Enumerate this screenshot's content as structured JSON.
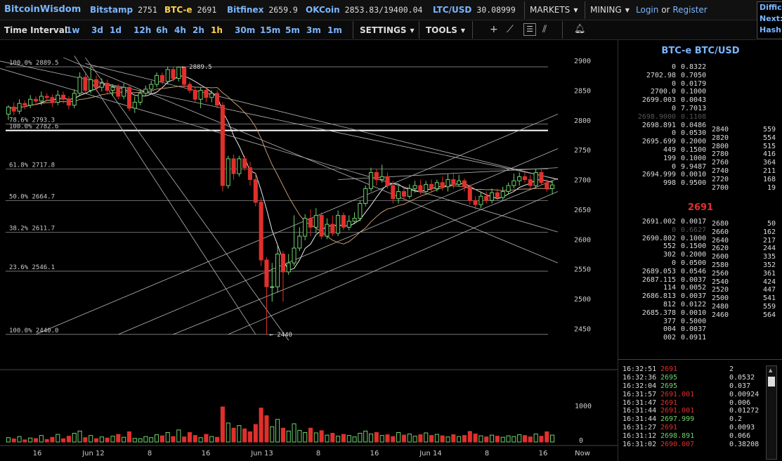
{
  "topbar": {
    "brand": "BitcoinWisdom",
    "exchanges": [
      {
        "name": "Bitstamp",
        "price": "2751"
      },
      {
        "name": "BTC-e",
        "price": "2691"
      },
      {
        "name": "Bitfinex",
        "price": "2659.9"
      },
      {
        "name": "OKCoin",
        "price": "2853.83/19400.04"
      },
      {
        "name": "LTC/USD",
        "price": "30.08999"
      }
    ],
    "markets_label": "MARKETS",
    "mining_label": "MINING",
    "login_label": "Login",
    "or_text": "or",
    "register_label": "Register",
    "side_lines": [
      "Diffic",
      "Next:",
      "Hash"
    ]
  },
  "toolbar": {
    "time_interval_label": "Time Interval:",
    "intervals": [
      "1w",
      "3d",
      "1d",
      "12h",
      "6h",
      "4h",
      "2h",
      "1h",
      "30m",
      "15m",
      "5m",
      "3m",
      "1m"
    ],
    "active_interval": "1h",
    "settings_label": "SETTINGS",
    "tools_label": "TOOLS",
    "tool_icons": [
      "crosshair-icon",
      "line-tool-icon",
      "horizontal-lines-icon",
      "fan-tool-icon",
      "alarm-icon"
    ]
  },
  "colors": {
    "up": "#6ed36e",
    "down": "#e0302c",
    "accent": "#7ab6ff",
    "active": "#ffd24d"
  },
  "chart_data": {
    "type": "candlestick",
    "y_ticks": [
      2450,
      2500,
      2550,
      2600,
      2650,
      2700,
      2750,
      2800,
      2850,
      2900
    ],
    "ylim": [
      2415,
      2925
    ],
    "x_tick_labels": [
      "16",
      "Jun 12",
      "8",
      "16",
      "Jun 13",
      "8",
      "16",
      "Jun 14",
      "8",
      "16",
      "Now"
    ],
    "volume_ticks": [
      "1000",
      "0"
    ],
    "fib_levels": [
      {
        "label": "100.0% 2889.5",
        "value": 2889.5
      },
      {
        "label": "78.6% 2793.3",
        "value": 2793.3
      },
      {
        "label": "100.0% 2782.6",
        "value": 2782.6
      },
      {
        "label": "61.8% 2717.8",
        "value": 2717.8
      },
      {
        "label": "50.0% 2664.7",
        "value": 2664.7
      },
      {
        "label": "38.2% 2611.7",
        "value": 2611.7
      },
      {
        "label": "23.6% 2546.1",
        "value": 2546.1
      },
      {
        "label": "100.0% 2440.0",
        "value": 2440.0
      }
    ],
    "annotations": [
      {
        "text": "← 2889.5",
        "value": 2889.5
      },
      {
        "text": "← 2440",
        "value": 2440
      }
    ],
    "candles": [
      [
        2810,
        2822,
        2800,
        2825
      ],
      [
        2822,
        2815,
        2808,
        2830
      ],
      [
        2815,
        2828,
        2810,
        2835
      ],
      [
        2828,
        2825,
        2818,
        2833
      ],
      [
        2825,
        2835,
        2820,
        2842
      ],
      [
        2835,
        2832,
        2825,
        2840
      ],
      [
        2832,
        2840,
        2825,
        2848
      ],
      [
        2840,
        2838,
        2832,
        2845
      ],
      [
        2838,
        2830,
        2822,
        2843
      ],
      [
        2830,
        2842,
        2825,
        2850
      ],
      [
        2842,
        2835,
        2828,
        2848
      ],
      [
        2835,
        2825,
        2818,
        2840
      ],
      [
        2825,
        2845,
        2820,
        2852
      ],
      [
        2845,
        2872,
        2840,
        2880
      ],
      [
        2872,
        2850,
        2845,
        2878
      ],
      [
        2850,
        2868,
        2845,
        2890
      ],
      [
        2868,
        2855,
        2848,
        2875
      ],
      [
        2855,
        2862,
        2848,
        2870
      ],
      [
        2862,
        2850,
        2845,
        2868
      ],
      [
        2850,
        2855,
        2840,
        2860
      ],
      [
        2855,
        2840,
        2835,
        2860
      ],
      [
        2840,
        2855,
        2835,
        2862
      ],
      [
        2855,
        2820,
        2815,
        2860
      ],
      [
        2820,
        2830,
        2812,
        2840
      ],
      [
        2830,
        2845,
        2825,
        2852
      ],
      [
        2845,
        2852,
        2840,
        2858
      ],
      [
        2852,
        2860,
        2845,
        2866
      ],
      [
        2860,
        2875,
        2855,
        2880
      ],
      [
        2875,
        2865,
        2860,
        2880
      ],
      [
        2865,
        2885,
        2860,
        2890
      ],
      [
        2885,
        2870,
        2865,
        2889
      ],
      [
        2870,
        2889,
        2865,
        2890
      ],
      [
        2889,
        2860,
        2855,
        2890
      ],
      [
        2860,
        2850,
        2845,
        2865
      ],
      [
        2850,
        2835,
        2830,
        2855
      ],
      [
        2835,
        2850,
        2820,
        2855
      ],
      [
        2850,
        2838,
        2830,
        2855
      ],
      [
        2838,
        2845,
        2830,
        2850
      ],
      [
        2845,
        2825,
        2820,
        2850
      ],
      [
        2825,
        2690,
        2680,
        2830
      ],
      [
        2690,
        2735,
        2685,
        2740
      ],
      [
        2735,
        2710,
        2700,
        2742
      ],
      [
        2710,
        2735,
        2705,
        2740
      ],
      [
        2735,
        2720,
        2715,
        2740
      ],
      [
        2720,
        2700,
        2690,
        2730
      ],
      [
        2700,
        2662,
        2655,
        2712
      ],
      [
        2662,
        2565,
        2555,
        2670
      ],
      [
        2565,
        2520,
        2440,
        2570
      ],
      [
        2520,
        2520,
        2495,
        2560
      ],
      [
        2520,
        2575,
        2510,
        2590
      ],
      [
        2575,
        2545,
        2495,
        2580
      ],
      [
        2545,
        2560,
        2540,
        2575
      ],
      [
        2560,
        2585,
        2555,
        2640
      ],
      [
        2585,
        2605,
        2580,
        2620
      ],
      [
        2605,
        2635,
        2598,
        2642
      ],
      [
        2635,
        2620,
        2605,
        2650
      ],
      [
        2620,
        2640,
        2610,
        2652
      ],
      [
        2640,
        2605,
        2600,
        2645
      ],
      [
        2605,
        2625,
        2600,
        2635
      ],
      [
        2625,
        2610,
        2605,
        2640
      ],
      [
        2610,
        2640,
        2605,
        2648
      ],
      [
        2640,
        2620,
        2615,
        2645
      ],
      [
        2620,
        2630,
        2615,
        2640
      ],
      [
        2630,
        2635,
        2625,
        2645
      ],
      [
        2635,
        2660,
        2630,
        2665
      ],
      [
        2660,
        2685,
        2655,
        2690
      ],
      [
        2685,
        2712,
        2680,
        2720
      ],
      [
        2712,
        2700,
        2690,
        2718
      ],
      [
        2700,
        2705,
        2695,
        2725
      ],
      [
        2705,
        2690,
        2685,
        2712
      ],
      [
        2690,
        2668,
        2660,
        2698
      ],
      [
        2668,
        2680,
        2660,
        2690
      ],
      [
        2680,
        2672,
        2665,
        2688
      ],
      [
        2672,
        2685,
        2668,
        2692
      ],
      [
        2685,
        2690,
        2678,
        2698
      ],
      [
        2690,
        2680,
        2675,
        2700
      ],
      [
        2680,
        2692,
        2678,
        2698
      ],
      [
        2692,
        2685,
        2680,
        2700
      ],
      [
        2685,
        2695,
        2680,
        2700
      ],
      [
        2695,
        2688,
        2682,
        2705
      ],
      [
        2688,
        2700,
        2680,
        2710
      ],
      [
        2700,
        2692,
        2685,
        2712
      ],
      [
        2692,
        2698,
        2688,
        2708
      ],
      [
        2698,
        2688,
        2680,
        2702
      ],
      [
        2688,
        2665,
        2658,
        2692
      ],
      [
        2665,
        2658,
        2650,
        2672
      ],
      [
        2658,
        2672,
        2652,
        2680
      ],
      [
        2672,
        2665,
        2660,
        2680
      ],
      [
        2665,
        2678,
        2660,
        2685
      ],
      [
        2678,
        2670,
        2665,
        2685
      ],
      [
        2670,
        2680,
        2665,
        2688
      ],
      [
        2680,
        2690,
        2675,
        2695
      ],
      [
        2690,
        2698,
        2685,
        2710
      ],
      [
        2698,
        2705,
        2690,
        2712
      ],
      [
        2705,
        2700,
        2695,
        2712
      ],
      [
        2700,
        2690,
        2685,
        2708
      ],
      [
        2690,
        2712,
        2685,
        2718
      ],
      [
        2712,
        2695,
        2690,
        2720
      ],
      [
        2695,
        2685,
        2680,
        2700
      ],
      [
        2685,
        2691,
        2675,
        2698
      ]
    ],
    "volumes": [
      120,
      85,
      150,
      60,
      110,
      95,
      180,
      70,
      130,
      210,
      90,
      160,
      240,
      300,
      120,
      180,
      90,
      140,
      110,
      160,
      210,
      130,
      280,
      100,
      90,
      150,
      120,
      200,
      170,
      260,
      150,
      330,
      140,
      260,
      180,
      120,
      210,
      150,
      130,
      960,
      520,
      380,
      450,
      360,
      280,
      480,
      930,
      720,
      420,
      620,
      380,
      300,
      500,
      320,
      260,
      380,
      250,
      310,
      190,
      240,
      160,
      210,
      180,
      140,
      240,
      300,
      220,
      260,
      180,
      200,
      150,
      260,
      190,
      220,
      160,
      200,
      250,
      180,
      210,
      170,
      140,
      200,
      150,
      180,
      290,
      220,
      170,
      140,
      190,
      160,
      130,
      170,
      150,
      200,
      180,
      140,
      220,
      160,
      280,
      190
    ]
  },
  "orderbook": {
    "title": "BTC-e BTC/USD",
    "asks_prices": [
      "0",
      "2702.98",
      "0",
      "2700.0",
      "2699.003",
      "0",
      "2698.9000",
      "2698.891",
      "0",
      "2695.699",
      "449",
      "199",
      "0",
      "2694.999",
      "998"
    ],
    "asks_amounts": [
      "0.8322",
      "0.7050",
      "0.0179",
      "0.1000",
      "0.0043",
      "7.7013",
      "0.1108",
      "0.0486",
      "0.0530",
      "0.2000",
      "0.1500",
      "0.1000",
      "9.9487",
      "0.0010",
      "0.9500"
    ],
    "last_price": "2691",
    "bids_prices": [
      "2691.002",
      "0",
      "2690.802",
      "552",
      "302",
      "0",
      "2689.053",
      "2687.115",
      "114",
      "2686.813",
      "812",
      "2685.378",
      "377",
      "004",
      "002"
    ],
    "bids_amounts": [
      "0.0017",
      "0.6627",
      "0.1000",
      "0.1500",
      "0.2000",
      "0.0500",
      "0.0546",
      "0.0037",
      "0.0052",
      "0.0037",
      "0.0122",
      "0.0010",
      "0.5000",
      "0.0037",
      "0.0911"
    ],
    "ask_depth": [
      [
        "2840",
        "559"
      ],
      [
        "2820",
        "554"
      ],
      [
        "2800",
        "515"
      ],
      [
        "2780",
        "416"
      ],
      [
        "2760",
        "364"
      ],
      [
        "2740",
        "211"
      ],
      [
        "2720",
        "168"
      ],
      [
        "2700",
        "19"
      ]
    ],
    "bid_depth": [
      [
        "2680",
        "50"
      ],
      [
        "2660",
        "162"
      ],
      [
        "2640",
        "217"
      ],
      [
        "2620",
        "244"
      ],
      [
        "2600",
        "335"
      ],
      [
        "2580",
        "352"
      ],
      [
        "2560",
        "361"
      ],
      [
        "2540",
        "424"
      ],
      [
        "2520",
        "447"
      ],
      [
        "2500",
        "541"
      ],
      [
        "2480",
        "559"
      ],
      [
        "2460",
        "564"
      ]
    ]
  },
  "trades": [
    {
      "time": "16:32:51",
      "price": "2691",
      "dir": "dn",
      "amount": "2"
    },
    {
      "time": "16:32:36",
      "price": "2695",
      "dir": "up",
      "amount": "0.0532"
    },
    {
      "time": "16:32:04",
      "price": "2695",
      "dir": "up",
      "amount": "0.037"
    },
    {
      "time": "16:31:57",
      "price": "2691.001",
      "dir": "dn",
      "amount": "0.00924"
    },
    {
      "time": "16:31:47",
      "price": "2691",
      "dir": "dn",
      "amount": "0.006"
    },
    {
      "time": "16:31:44",
      "price": "2691.001",
      "dir": "dn",
      "amount": "0.01272"
    },
    {
      "time": "16:31:44",
      "price": "2697.999",
      "dir": "up",
      "amount": "0.2"
    },
    {
      "time": "16:31:27",
      "price": "2691",
      "dir": "dn",
      "amount": "0.0093"
    },
    {
      "time": "16:31:12",
      "price": "2698.891",
      "dir": "up",
      "amount": "0.066"
    },
    {
      "time": "16:31:02",
      "price": "2690.007",
      "dir": "dn",
      "amount": "0.38208"
    }
  ]
}
